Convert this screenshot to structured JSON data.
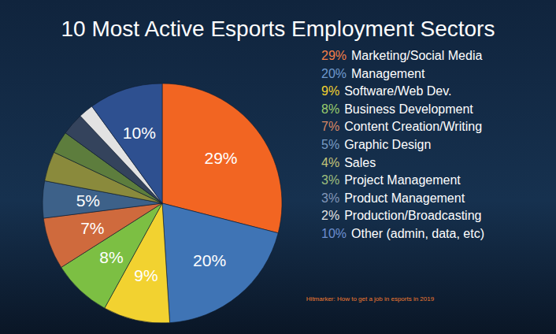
{
  "chart_data": {
    "type": "pie",
    "title": "10 Most Active Esports Employment Sectors",
    "categories": [
      "Marketing/Social Media",
      "Management",
      "Software/Web Dev.",
      "Business Development",
      "Content Creation/Writing",
      "Graphic Design",
      "Sales",
      "Project Management",
      "Product Management",
      "Production/Broadcasting",
      "Other (admin, data, etc)"
    ],
    "values": [
      29,
      20,
      9,
      8,
      7,
      5,
      4,
      3,
      3,
      2,
      10
    ],
    "value_labels": [
      "29%",
      "20%",
      "9%",
      "8%",
      "7%",
      "5%",
      "4%",
      "3%",
      "3%",
      "2%",
      "10%"
    ],
    "colors": [
      "#f26522",
      "#3f74b5",
      "#f2d230",
      "#7cbf43",
      "#cf6a3d",
      "#3d6189",
      "#8a8a3c",
      "#5d7d3d",
      "#34435c",
      "#e2e2e2",
      "#2e5090"
    ],
    "data_labels": true,
    "legend": "right",
    "source": "Hitmarker: How to get a job in esports in 2019"
  }
}
